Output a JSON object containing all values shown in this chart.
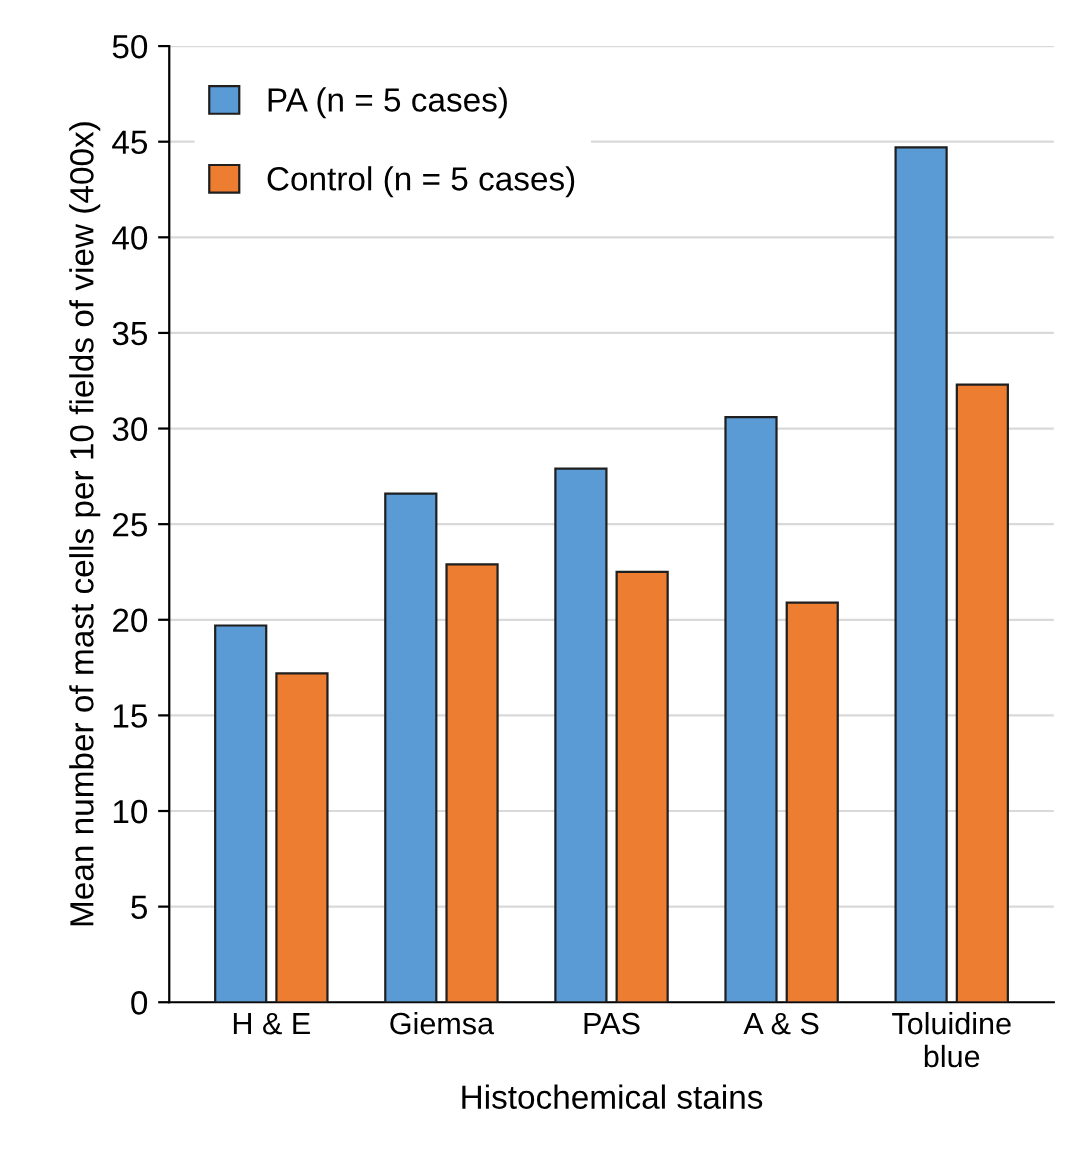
{
  "chart_data": {
    "type": "bar",
    "xlabel": "Histochemical stains",
    "ylabel": "Mean number of mast cells per 10 fields of view (400x)",
    "categories": [
      "H & E",
      "Giemsa",
      "PAS",
      "A & S",
      "Toluidine\nblue"
    ],
    "series": [
      {
        "name": "PA (n = 5 cases)",
        "color": "#5b9bd5",
        "values": [
          19.7,
          26.6,
          27.9,
          30.6,
          44.7
        ]
      },
      {
        "name": "Control (n = 5 cases)",
        "color": "#ed7d31",
        "values": [
          17.2,
          22.9,
          22.5,
          20.9,
          32.3
        ]
      }
    ],
    "ylim": [
      0,
      50
    ],
    "yticks": [
      0,
      5,
      10,
      15,
      20,
      25,
      30,
      35,
      40,
      45,
      50
    ],
    "grid": "y",
    "legend": "top left"
  }
}
